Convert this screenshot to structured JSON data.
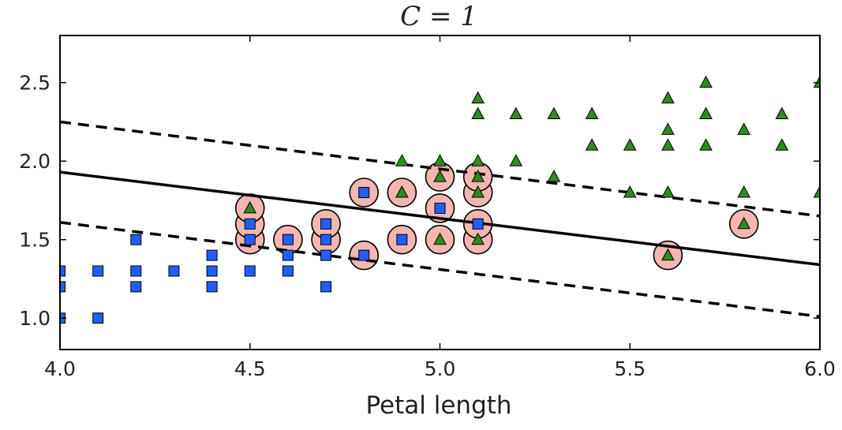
{
  "chart_data": {
    "type": "scatter",
    "title": "C = 1",
    "xlabel": "Petal length",
    "ylabel": "",
    "xlim": [
      4.0,
      6.0
    ],
    "ylim": [
      0.8,
      2.8
    ],
    "x_ticks": [
      "4.0",
      "4.5",
      "5.0",
      "5.5",
      "6.0"
    ],
    "y_ticks": [
      "1.0",
      "1.5",
      "2.0",
      "2.5"
    ],
    "x_tick_values": [
      4.0,
      4.5,
      5.0,
      5.5,
      6.0
    ],
    "y_tick_values": [
      1.0,
      1.5,
      2.0,
      2.5
    ],
    "grid": false,
    "colors": {
      "class_a": "#1f5fff",
      "class_b": "#2e8b1e",
      "support_vector": "#f4b6b0",
      "boundary": "#000000"
    },
    "series": [
      {
        "marker": "square",
        "color": "#1f5fff",
        "points": [
          [
            4.0,
            1.0
          ],
          [
            4.0,
            1.2
          ],
          [
            4.0,
            1.3
          ],
          [
            4.1,
            1.0
          ],
          [
            4.1,
            1.3
          ],
          [
            4.2,
            1.2
          ],
          [
            4.2,
            1.3
          ],
          [
            4.2,
            1.5
          ],
          [
            4.3,
            1.3
          ],
          [
            4.4,
            1.2
          ],
          [
            4.4,
            1.3
          ],
          [
            4.4,
            1.4
          ],
          [
            4.5,
            1.3
          ],
          [
            4.5,
            1.5
          ],
          [
            4.5,
            1.6
          ],
          [
            4.6,
            1.3
          ],
          [
            4.6,
            1.4
          ],
          [
            4.6,
            1.5
          ],
          [
            4.7,
            1.2
          ],
          [
            4.7,
            1.4
          ],
          [
            4.7,
            1.5
          ],
          [
            4.7,
            1.6
          ],
          [
            4.8,
            1.4
          ],
          [
            4.8,
            1.8
          ],
          [
            4.9,
            1.5
          ],
          [
            5.0,
            1.7
          ],
          [
            5.1,
            1.6
          ]
        ]
      },
      {
        "marker": "triangle",
        "color": "#2e8b1e",
        "points": [
          [
            4.5,
            1.7
          ],
          [
            4.9,
            1.8
          ],
          [
            4.9,
            2.0
          ],
          [
            5.0,
            1.5
          ],
          [
            5.0,
            1.9
          ],
          [
            5.0,
            2.0
          ],
          [
            5.1,
            1.5
          ],
          [
            5.1,
            1.8
          ],
          [
            5.1,
            1.9
          ],
          [
            5.1,
            2.0
          ],
          [
            5.1,
            2.3
          ],
          [
            5.1,
            2.4
          ],
          [
            5.2,
            2.0
          ],
          [
            5.2,
            2.3
          ],
          [
            5.3,
            1.9
          ],
          [
            5.3,
            2.3
          ],
          [
            5.4,
            2.1
          ],
          [
            5.4,
            2.3
          ],
          [
            5.5,
            1.8
          ],
          [
            5.5,
            2.1
          ],
          [
            5.6,
            1.4
          ],
          [
            5.6,
            1.8
          ],
          [
            5.6,
            2.1
          ],
          [
            5.6,
            2.2
          ],
          [
            5.6,
            2.4
          ],
          [
            5.7,
            2.1
          ],
          [
            5.7,
            2.3
          ],
          [
            5.7,
            2.5
          ],
          [
            5.8,
            1.6
          ],
          [
            5.8,
            1.8
          ],
          [
            5.8,
            2.2
          ],
          [
            5.9,
            2.1
          ],
          [
            5.9,
            2.3
          ],
          [
            6.0,
            1.8
          ],
          [
            6.0,
            2.5
          ]
        ]
      }
    ],
    "support_vectors": [
      [
        4.5,
        1.5
      ],
      [
        4.5,
        1.6
      ],
      [
        4.5,
        1.7
      ],
      [
        4.6,
        1.5
      ],
      [
        4.7,
        1.5
      ],
      [
        4.7,
        1.6
      ],
      [
        4.8,
        1.4
      ],
      [
        4.8,
        1.8
      ],
      [
        4.9,
        1.5
      ],
      [
        4.9,
        1.8
      ],
      [
        5.0,
        1.5
      ],
      [
        5.0,
        1.7
      ],
      [
        5.0,
        1.9
      ],
      [
        5.1,
        1.5
      ],
      [
        5.1,
        1.6
      ],
      [
        5.1,
        1.8
      ],
      [
        5.1,
        1.9
      ],
      [
        5.6,
        1.4
      ],
      [
        5.8,
        1.6
      ]
    ],
    "decision_boundary": {
      "style": "solid",
      "points": [
        [
          4.0,
          1.93
        ],
        [
          6.0,
          1.34
        ]
      ]
    },
    "margins": [
      {
        "style": "dashed",
        "points": [
          [
            4.0,
            2.25
          ],
          [
            6.0,
            1.65
          ]
        ]
      },
      {
        "style": "dashed",
        "points": [
          [
            4.0,
            1.61
          ],
          [
            6.0,
            1.01
          ]
        ]
      }
    ]
  }
}
